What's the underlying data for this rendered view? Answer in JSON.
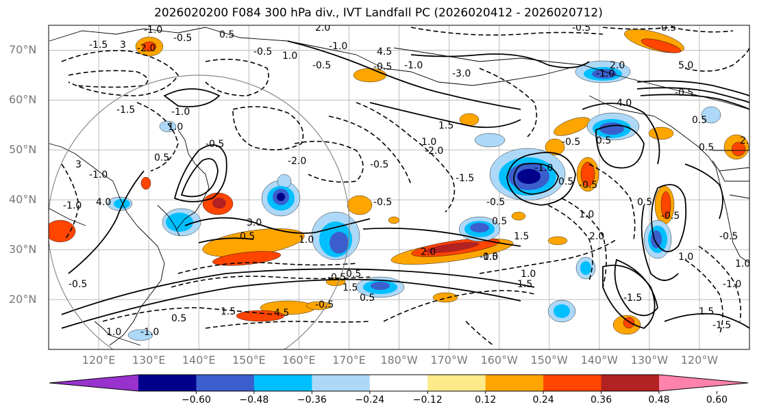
{
  "title": "2026020200 F084 300 hPa div., IVT Landfall PC (2026020412 - 2026020712)",
  "map": {
    "lon_range": [
      110,
      250
    ],
    "lat_range": [
      10,
      75
    ],
    "lat_ticks": [
      "20°N",
      "30°N",
      "40°N",
      "50°N",
      "60°N",
      "70°N"
    ],
    "lon_ticks": [
      "120°E",
      "130°E",
      "140°E",
      "150°E",
      "160°E",
      "170°E",
      "180°W",
      "170°W",
      "160°W",
      "150°W",
      "140°W",
      "130°W",
      "120°W"
    ],
    "gridlines": true
  },
  "contour_labels": [
    "-1.0",
    "-0.5",
    "0.5",
    "-1.5",
    "-2.0",
    "-0.5",
    "1.0",
    "-1.0",
    "-0.5",
    "-1.5",
    "-1.0",
    "-0.5",
    "0.5",
    "3",
    "4.0",
    "2.0",
    "4.5",
    "-0.5",
    "-1.0",
    "-3.0",
    "-0.5",
    "-1.0",
    "-0.5",
    "5.0",
    "4.0",
    "0.5",
    "-1.0",
    "1.5",
    "1.0",
    "-0.5",
    "-2.0",
    "-1.5",
    "0.5",
    "1.5",
    "-0.5",
    "2.0",
    "-0.5",
    "0.5",
    "1.0",
    "-0.5",
    "1.0",
    "1.5",
    "-1.5",
    "1.0",
    "-1.0",
    "2.0",
    "0.5",
    "0.5",
    "-0.5",
    "4.5",
    "1.5",
    "0.5",
    "-1.0",
    "1.0",
    "-0.5",
    "-1.0",
    "-1.0",
    "-2.0",
    "1.0",
    "-0.5",
    "-0.5",
    "1.5",
    "-0.5",
    "1.0",
    "-1.0",
    "2.0",
    "2.0",
    "-0.5",
    "1.5",
    "0.5",
    "-1.5",
    "0.5",
    "3",
    "-0.5",
    "0.5",
    "0.5",
    "0.5",
    "3.0",
    "1.0"
  ],
  "colorbar": {
    "colors": [
      "#9932cc",
      "#00008b",
      "#3a5fcd",
      "#00bfff",
      "#add8f7",
      "#ffffff",
      "#ffea8a",
      "#ffa500",
      "#ff4500",
      "#b22222",
      "#ff82ab"
    ],
    "tick_labels": [
      "−0.60",
      "−0.48",
      "−0.36",
      "−0.24",
      "−0.12",
      "0.12",
      "0.24",
      "0.36",
      "0.48",
      "0.60"
    ],
    "extend": "both"
  }
}
